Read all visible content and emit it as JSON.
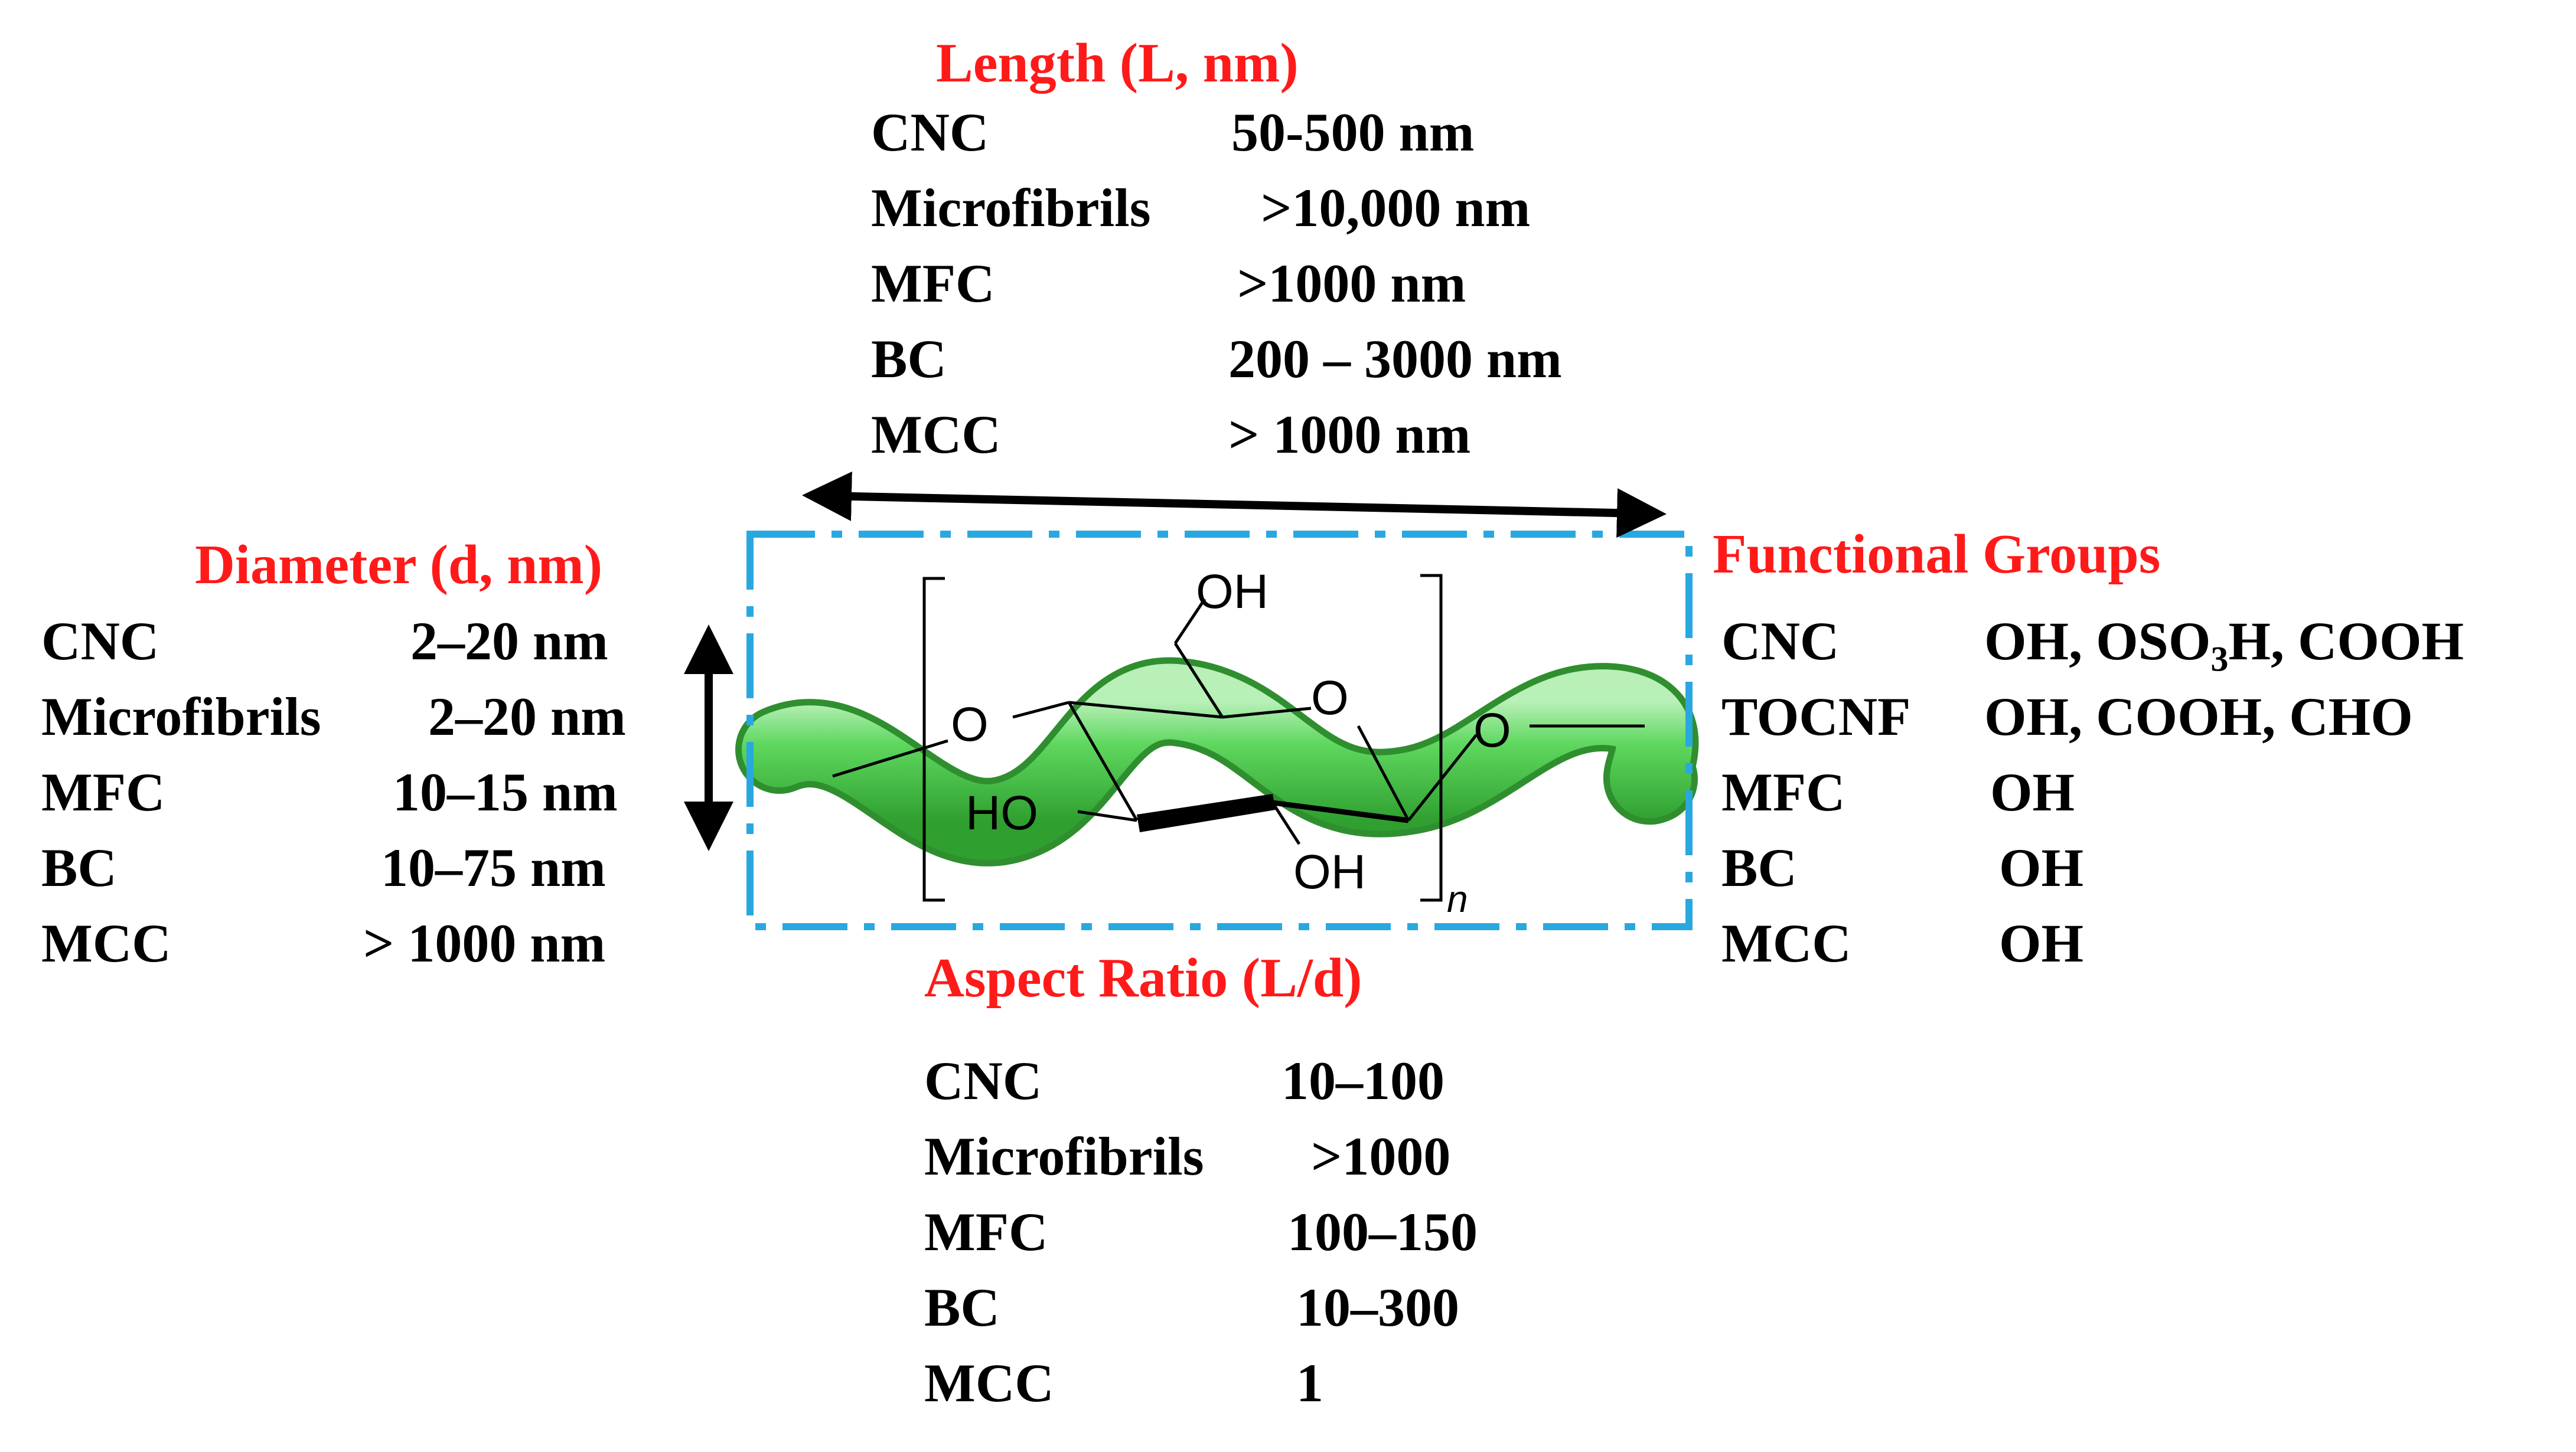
{
  "length": {
    "heading": "Length (L, nm)",
    "rows": [
      {
        "name": "CNC",
        "value": "50-500 nm"
      },
      {
        "name": "Microfibrils",
        "value": ">10,000 nm"
      },
      {
        "name": "MFC",
        "value": ">1000 nm"
      },
      {
        "name": "BC",
        "value": "200 – 3000 nm"
      },
      {
        "name": "MCC",
        "value": "> 1000 nm"
      }
    ]
  },
  "diameter": {
    "heading": "Diameter (d, nm)",
    "rows": [
      {
        "name": "CNC",
        "value": "2–20 nm"
      },
      {
        "name": "Microfibrils",
        "value": "2–20 nm"
      },
      {
        "name": "MFC",
        "value": "10–15 nm"
      },
      {
        "name": "BC",
        "value": "10–75 nm"
      },
      {
        "name": "MCC",
        "value": "> 1000 nm"
      }
    ]
  },
  "functional_groups": {
    "heading": "Functional Groups",
    "rows": [
      {
        "name": "CNC",
        "value_pre": "OH, OSO",
        "value_sub": "3",
        "value_post": "H, COOH"
      },
      {
        "name": "TOCNF",
        "value": "OH, COOH, CHO"
      },
      {
        "name": "MFC",
        "value": "OH"
      },
      {
        "name": "BC",
        "value": "OH"
      },
      {
        "name": "MCC",
        "value": "OH"
      }
    ]
  },
  "aspect_ratio": {
    "heading": "Aspect Ratio (L/d)",
    "rows": [
      {
        "name": "CNC",
        "value": "10–100"
      },
      {
        "name": "Microfibrils",
        "value": ">1000"
      },
      {
        "name": "MFC",
        "value": "100–150"
      },
      {
        "name": "BC",
        "value": "10–300"
      },
      {
        "name": "MCC",
        "value": "1"
      }
    ]
  },
  "structure": {
    "oh_top": "OH",
    "ring_o": "O",
    "link_o_left": "O",
    "link_o_right": "O",
    "ho_left": "HO",
    "oh_bottom": "OH",
    "repeat_index": "n"
  },
  "colors": {
    "heading": "#ff1a1a",
    "fiber": "#4ccd4c",
    "frame": "#29a8e0"
  }
}
